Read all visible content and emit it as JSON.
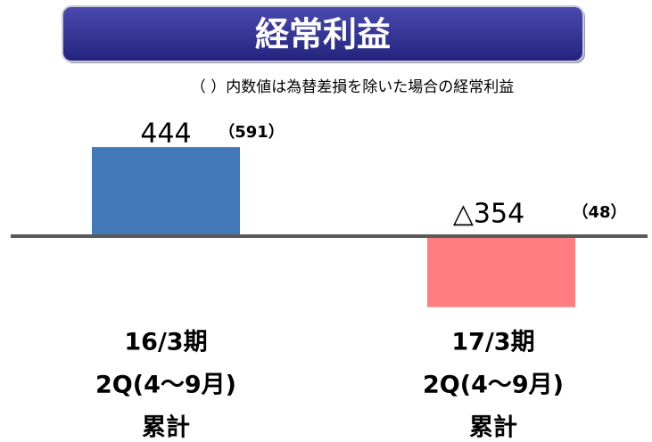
{
  "chart_data": {
    "type": "bar",
    "title": "経常利益",
    "subtitle": "（ ）内数値は為替差損を除いた場合の経常利益",
    "categories": [
      [
        "16/3期",
        "2Q(4～9月)",
        "累計"
      ],
      [
        "17/3期",
        "2Q(4～9月)",
        "累計"
      ]
    ],
    "values": [
      444,
      -354
    ],
    "value_labels": [
      "444",
      "△354"
    ],
    "annotations": [
      "（591）",
      "（48）"
    ],
    "colors": [
      "#4379b9",
      "#ff7c80"
    ]
  }
}
